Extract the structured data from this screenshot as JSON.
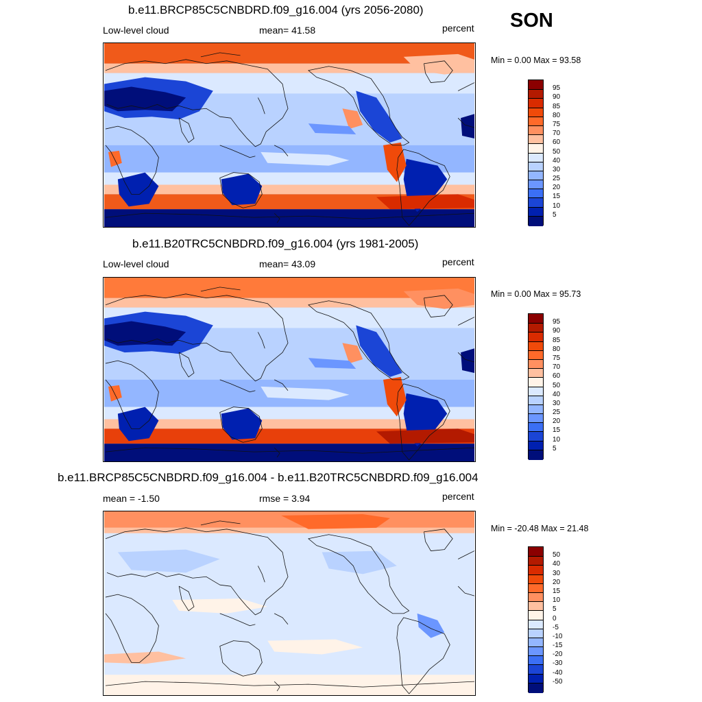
{
  "season": "SON",
  "panels": [
    {
      "title": "b.e11.BRCP85C5CNBDRD.f09_g16.004 (yrs 2056-2080)",
      "left_label": "Low-level cloud",
      "center_label": "mean=  41.58",
      "right_label": "percent",
      "minmax": "Min =   0.00 Max =  93.58",
      "colorbar": {
        "labels": [
          "95",
          "90",
          "85",
          "80",
          "75",
          "70",
          "60",
          "50",
          "40",
          "30",
          "25",
          "20",
          "15",
          "10",
          "5"
        ],
        "colors": [
          "#8b0000",
          "#b31a00",
          "#d92b00",
          "#f04a0a",
          "#ff6a2a",
          "#ff9060",
          "#ffc0a0",
          "#fff3e8",
          "#dbe9ff",
          "#b9d2ff",
          "#93b6ff",
          "#6b96ff",
          "#3b6ff5",
          "#1b45d6",
          "#0020b0",
          "#000e7a"
        ]
      },
      "map_data": {
        "variable": "Low-level cloud",
        "units": "percent",
        "mean": 41.58,
        "min": 0.0,
        "max": 93.58,
        "style": "future"
      }
    },
    {
      "title": "b.e11.B20TRC5CNBDRD.f09_g16.004 (yrs 1981-2005)",
      "left_label": "Low-level cloud",
      "center_label": "mean=  43.09",
      "right_label": "percent",
      "minmax": "Min =   0.00 Max =  95.73",
      "colorbar": {
        "labels": [
          "95",
          "90",
          "85",
          "80",
          "75",
          "70",
          "60",
          "50",
          "40",
          "30",
          "25",
          "20",
          "15",
          "10",
          "5"
        ],
        "colors": [
          "#8b0000",
          "#b31a00",
          "#d92b00",
          "#f04a0a",
          "#ff6a2a",
          "#ff9060",
          "#ffc0a0",
          "#fff3e8",
          "#dbe9ff",
          "#b9d2ff",
          "#93b6ff",
          "#6b96ff",
          "#3b6ff5",
          "#1b45d6",
          "#0020b0",
          "#000e7a"
        ]
      },
      "map_data": {
        "variable": "Low-level cloud",
        "units": "percent",
        "mean": 43.09,
        "min": 0.0,
        "max": 95.73,
        "style": "historical"
      }
    },
    {
      "title": "b.e11.BRCP85C5CNBDRD.f09_g16.004 - b.e11.B20TRC5CNBDRD.f09_g16.004",
      "left_label": "mean =  -1.50",
      "center_label": "rmse =   3.94",
      "right_label": "percent",
      "minmax": "Min = -20.48 Max =  21.48",
      "colorbar": {
        "labels": [
          "50",
          "40",
          "30",
          "20",
          "15",
          "10",
          "5",
          "0",
          "-5",
          "-10",
          "-15",
          "-20",
          "-30",
          "-40",
          "-50"
        ],
        "colors": [
          "#8b0000",
          "#b31a00",
          "#d92b00",
          "#f04a0a",
          "#ff6a2a",
          "#ff9060",
          "#ffc0a0",
          "#fff3e8",
          "#dbe9ff",
          "#b9d2ff",
          "#93b6ff",
          "#6b96ff",
          "#3b6ff5",
          "#1b45d6",
          "#0020b0",
          "#000e7a"
        ]
      },
      "map_data": {
        "variable": "Low-level cloud difference",
        "units": "percent",
        "mean": -1.5,
        "rmse": 3.94,
        "min": -20.48,
        "max": 21.48,
        "style": "difference"
      }
    }
  ]
}
